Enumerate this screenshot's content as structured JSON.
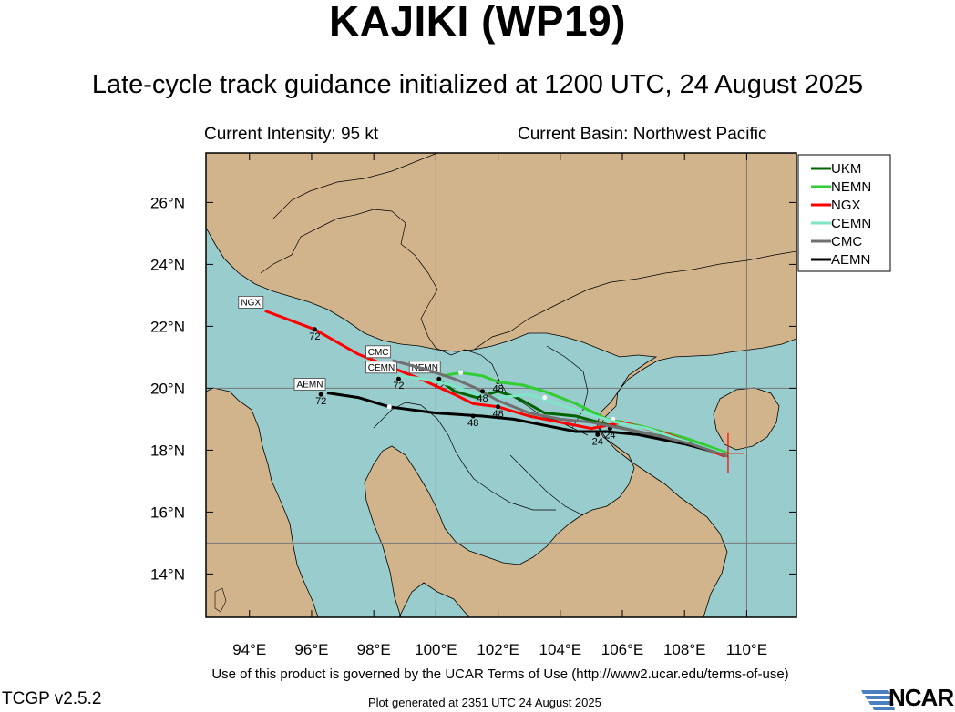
{
  "header": {
    "title": "KAJIKI (WP19)",
    "subtitle": "Late-cycle track guidance initialized at 1200 UTC, 24 August 2025"
  },
  "info": {
    "intensity": "Current Intensity: 95 kt",
    "basin": "Current Basin: Northwest Pacific"
  },
  "map": {
    "lon_range": [
      92.6,
      111.6
    ],
    "lat_range": [
      12.6,
      27.6
    ],
    "land_color": "#d2b48c",
    "ocean_color": "#99cccc",
    "lon_ticks": [
      "94°E",
      "96°E",
      "98°E",
      "100°E",
      "102°E",
      "104°E",
      "106°E",
      "108°E",
      "110°E"
    ],
    "lat_ticks": [
      "14°N",
      "16°N",
      "18°N",
      "20°N",
      "22°N",
      "24°N",
      "26°N"
    ],
    "current_position": {
      "lon": 109.4,
      "lat": 17.9
    }
  },
  "legend": [
    {
      "name": "UKM",
      "color": "#006400"
    },
    {
      "name": "NEMN",
      "color": "#32cd32"
    },
    {
      "name": "NGX",
      "color": "#ff0000"
    },
    {
      "name": "CEMN",
      "color": "#7fe5c7"
    },
    {
      "name": "CMC",
      "color": "#707070"
    },
    {
      "name": "AEMN",
      "color": "#000000"
    }
  ],
  "tracks": [
    {
      "name": "AEMN",
      "color": "#000000",
      "end_label": "AEMN",
      "points": [
        [
          109.5,
          17.8
        ],
        [
          108,
          18.2
        ],
        [
          106.5,
          18.5
        ],
        [
          105.5,
          18.6
        ],
        [
          104.5,
          18.6
        ],
        [
          103.5,
          18.8
        ],
        [
          102.5,
          19.0
        ],
        [
          101.5,
          19.1
        ],
        [
          100,
          19.2
        ],
        [
          98.5,
          19.4
        ],
        [
          97.5,
          19.7
        ],
        [
          96.5,
          19.85
        ]
      ],
      "markers": [
        {
          "lon": 98.5,
          "lat": 19.4,
          "label": ""
        },
        {
          "lon": 101.2,
          "lat": 19.1,
          "label": "48"
        },
        {
          "lon": 96.3,
          "lat": 19.8,
          "label": "72"
        }
      ]
    },
    {
      "name": "UKM",
      "color": "#006400",
      "end_label": "",
      "points": [
        [
          109.3,
          17.9
        ],
        [
          108,
          18.3
        ],
        [
          106.5,
          18.6
        ],
        [
          105.6,
          18.8
        ],
        [
          104.5,
          19.1
        ],
        [
          103.5,
          19.2
        ],
        [
          102.6,
          19.7
        ],
        [
          102,
          19.9
        ],
        [
          101.3,
          19.7
        ],
        [
          100.6,
          19.9
        ],
        [
          100.2,
          20.2
        ]
      ],
      "markers": [
        {
          "lon": 105.6,
          "lat": 18.7,
          "label": "24"
        },
        {
          "lon": 102,
          "lat": 20.2,
          "label": "48"
        }
      ]
    },
    {
      "name": "NEMN",
      "color": "#32cd32",
      "end_label": "NEMN",
      "points": [
        [
          109.4,
          17.9
        ],
        [
          108,
          18.4
        ],
        [
          106.5,
          18.8
        ],
        [
          105.5,
          19.0
        ],
        [
          104.5,
          19.5
        ],
        [
          103.5,
          19.9
        ],
        [
          102.8,
          20.1
        ],
        [
          102,
          20.2
        ],
        [
          101.5,
          20.4
        ],
        [
          100.8,
          20.5
        ],
        [
          100.2,
          20.4
        ]
      ],
      "markers": [
        {
          "lon": 105.7,
          "lat": 19.0,
          "label": ""
        },
        {
          "lon": 100.8,
          "lat": 20.5,
          "label": ""
        },
        {
          "lon": 100.1,
          "lat": 20.3,
          "label": "72"
        }
      ]
    },
    {
      "name": "NGX",
      "color": "#ff0000",
      "end_label": "NGX",
      "points": [
        [
          109.3,
          17.8
        ],
        [
          107.5,
          18.5
        ],
        [
          106,
          18.9
        ],
        [
          105,
          18.7
        ],
        [
          104,
          18.9
        ],
        [
          103,
          19.1
        ],
        [
          102,
          19.4
        ],
        [
          101.2,
          19.5
        ],
        [
          100.6,
          19.8
        ],
        [
          99.5,
          20.3
        ],
        [
          98.5,
          20.7
        ],
        [
          97.5,
          21.1
        ],
        [
          96.1,
          21.9
        ],
        [
          94.5,
          22.5
        ]
      ],
      "markers": [
        {
          "lon": 102,
          "lat": 19.4,
          "label": "48"
        },
        {
          "lon": 96.1,
          "lat": 21.9,
          "label": "72"
        }
      ]
    },
    {
      "name": "CEMN",
      "color": "#7fe5c7",
      "end_label": "CEMN",
      "points": [
        [
          109.5,
          17.8
        ],
        [
          108,
          18.3
        ],
        [
          106.8,
          18.7
        ],
        [
          105.8,
          18.9
        ],
        [
          104.8,
          19.2
        ],
        [
          103.9,
          19.5
        ],
        [
          103,
          19.8
        ],
        [
          102,
          19.7
        ],
        [
          101.3,
          19.8
        ],
        [
          100.5,
          20.1
        ],
        [
          99.6,
          20.3
        ],
        [
          98.8,
          20.4
        ]
      ],
      "markers": [
        {
          "lon": 103.5,
          "lat": 19.7,
          "label": ""
        },
        {
          "lon": 98.8,
          "lat": 20.3,
          "label": "72"
        }
      ]
    },
    {
      "name": "CMC",
      "color": "#707070",
      "end_label": "CMC",
      "points": [
        [
          109.4,
          17.8
        ],
        [
          108.2,
          18.2
        ],
        [
          107,
          18.5
        ],
        [
          106,
          18.7
        ],
        [
          105,
          18.9
        ],
        [
          104,
          19.0
        ],
        [
          103,
          19.2
        ],
        [
          102,
          19.6
        ],
        [
          101.3,
          20.0
        ],
        [
          100.6,
          20.3
        ],
        [
          99.7,
          20.6
        ],
        [
          98.6,
          20.9
        ]
      ],
      "markers": [
        {
          "lon": 105.2,
          "lat": 18.5,
          "label": "24"
        },
        {
          "lon": 101.5,
          "lat": 19.9,
          "label": "48"
        }
      ]
    }
  ],
  "footer": {
    "terms": "Use of this product is governed by the UCAR Terms of Use (http://www2.ucar.edu/terms-of-use)",
    "version": "TCGP v2.5.2",
    "generated": "Plot generated at 2351 UTC   24 August 2025",
    "logo": "NCAR"
  }
}
